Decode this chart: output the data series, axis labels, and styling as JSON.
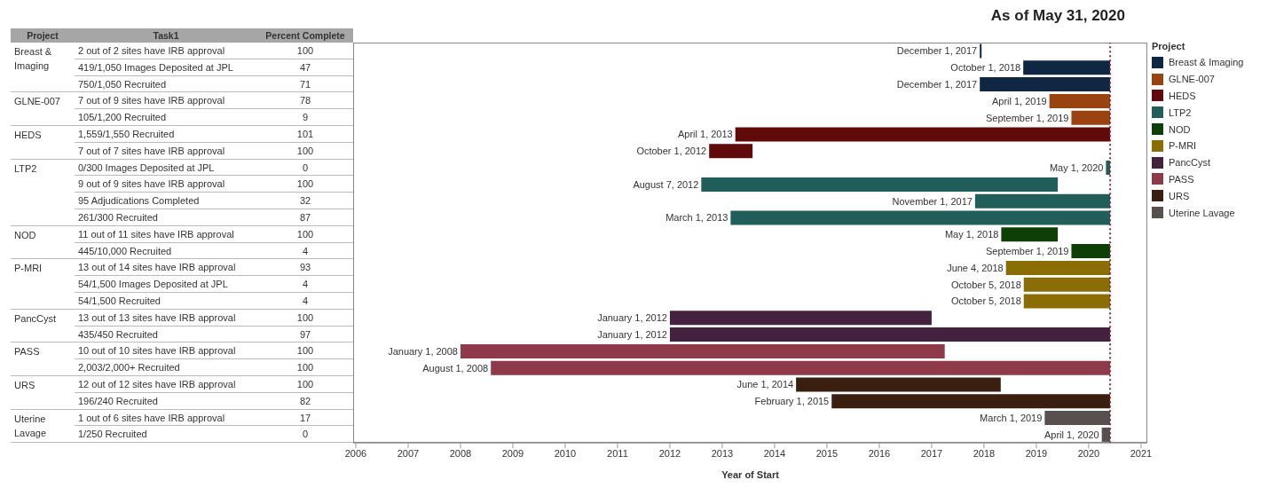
{
  "chart_data": {
    "type": "bar",
    "orientation": "horizontal",
    "title": "As of May 31, 2020",
    "xlabel": "Year of Start",
    "legend_title": "Project",
    "legend": "right",
    "categories": [
      "2 out of 2 sites have IRB approval",
      "419/1,050 Images Deposited at JPL",
      "750/1,050 Recruited",
      "7 out of 9 sites have IRB approval",
      "105/1,200 Recruited",
      "1,559/1,550 Recruited",
      "7 out of 7 sites have IRB approval",
      "0/300 Images Deposited at JPL",
      "9 out of 9 sites have IRB approval",
      "95 Adjudications Completed",
      "261/300 Recruited",
      "11 out of 11 sites have IRB approval",
      "445/10,000 Recruited",
      "13 out of 14 sites have IRB approval",
      "54/1,500 Images Deposited at JPL",
      "54/1,500 Recruited",
      "13 out of 13 sites have IRB approval",
      "435/450 Recruited",
      "10 out of 10 sites have IRB approval",
      "2,003/2,000+ Recruited",
      "12 out of 12 sites have IRB approval",
      "196/240 Recruited",
      "1 out of 6 sites have IRB approval",
      "1/250 Recruited"
    ],
    "value_labels": [
      "December 1, 2017",
      "October 1, 2018",
      "December 1, 2017",
      "April 1, 2019",
      "September 1, 2019",
      "April 1, 2013",
      "October 1, 2012",
      "May 1, 2020",
      "August 7, 2012",
      "November 1, 2017",
      "March 1, 2013",
      "May 1, 2018",
      "September 1, 2019",
      "June 4, 2018",
      "October 5, 2018",
      "October 5, 2018",
      "January 1, 2012",
      "January 1, 2012",
      "January 1, 2008",
      "August 1, 2008",
      "June 1, 2014",
      "February 1, 2015",
      "March 1, 2019",
      "April 1, 2020"
    ],
    "series": [
      {
        "name": "Breast & Imaging",
        "color": "#0f2742",
        "base": [
          2017.92,
          2018.75,
          2017.92,
          null,
          null,
          null,
          null,
          null,
          null,
          null,
          null,
          null,
          null,
          null,
          null,
          null,
          null,
          null,
          null,
          null,
          null,
          null,
          null,
          null
        ],
        "values": [
          0.02,
          1.66,
          2.49,
          null,
          null,
          null,
          null,
          null,
          null,
          null,
          null,
          null,
          null,
          null,
          null,
          null,
          null,
          null,
          null,
          null,
          null,
          null,
          null,
          null
        ]
      },
      {
        "name": "GLNE-007",
        "color": "#9a4310",
        "base": [
          null,
          null,
          null,
          2019.25,
          2019.67,
          null,
          null,
          null,
          null,
          null,
          null,
          null,
          null,
          null,
          null,
          null,
          null,
          null,
          null,
          null,
          null,
          null,
          null,
          null
        ],
        "values": [
          null,
          null,
          null,
          1.16,
          0.74,
          null,
          null,
          null,
          null,
          null,
          null,
          null,
          null,
          null,
          null,
          null,
          null,
          null,
          null,
          null,
          null,
          null,
          null,
          null
        ]
      },
      {
        "name": "HEDS",
        "color": "#600a0c",
        "base": [
          null,
          null,
          null,
          null,
          null,
          2013.25,
          2012.75,
          null,
          null,
          null,
          null,
          null,
          null,
          null,
          null,
          null,
          null,
          null,
          null,
          null,
          null,
          null,
          null,
          null
        ],
        "values": [
          null,
          null,
          null,
          null,
          null,
          7.16,
          0.83,
          null,
          null,
          null,
          null,
          null,
          null,
          null,
          null,
          null,
          null,
          null,
          null,
          null,
          null,
          null,
          null,
          null
        ]
      },
      {
        "name": "LTP2",
        "color": "#215e5a",
        "base": [
          null,
          null,
          null,
          null,
          null,
          null,
          null,
          2020.33,
          2012.6,
          2017.83,
          2013.16,
          null,
          null,
          null,
          null,
          null,
          null,
          null,
          null,
          null,
          null,
          null,
          null,
          null
        ],
        "values": [
          null,
          null,
          null,
          null,
          null,
          null,
          null,
          0.08,
          6.81,
          2.58,
          7.25,
          null,
          null,
          null,
          null,
          null,
          null,
          null,
          null,
          null,
          null,
          null,
          null,
          null
        ]
      },
      {
        "name": "NOD",
        "color": "#0e3f06",
        "base": [
          null,
          null,
          null,
          null,
          null,
          null,
          null,
          null,
          null,
          null,
          null,
          2018.33,
          2019.67,
          null,
          null,
          null,
          null,
          null,
          null,
          null,
          null,
          null,
          null,
          null
        ],
        "values": [
          null,
          null,
          null,
          null,
          null,
          null,
          null,
          null,
          null,
          null,
          null,
          1.08,
          0.74,
          null,
          null,
          null,
          null,
          null,
          null,
          null,
          null,
          null,
          null,
          null
        ]
      },
      {
        "name": "P-MRI",
        "color": "#8a6e05",
        "base": [
          null,
          null,
          null,
          null,
          null,
          null,
          null,
          null,
          null,
          null,
          null,
          null,
          null,
          2018.42,
          2018.76,
          2018.76,
          null,
          null,
          null,
          null,
          null,
          null,
          null,
          null
        ],
        "values": [
          null,
          null,
          null,
          null,
          null,
          null,
          null,
          null,
          null,
          null,
          null,
          null,
          null,
          1.99,
          1.65,
          1.65,
          null,
          null,
          null,
          null,
          null,
          null,
          null,
          null
        ]
      },
      {
        "name": "PancCyst",
        "color": "#44213e",
        "base": [
          null,
          null,
          null,
          null,
          null,
          null,
          null,
          null,
          null,
          null,
          null,
          null,
          null,
          null,
          null,
          null,
          2012.0,
          2012.0,
          null,
          null,
          null,
          null,
          null,
          null
        ],
        "values": [
          null,
          null,
          null,
          null,
          null,
          null,
          null,
          null,
          null,
          null,
          null,
          null,
          null,
          null,
          null,
          null,
          5.0,
          8.41,
          null,
          null,
          null,
          null,
          null,
          null
        ]
      },
      {
        "name": "PASS",
        "color": "#8e3a4a",
        "base": [
          null,
          null,
          null,
          null,
          null,
          null,
          null,
          null,
          null,
          null,
          null,
          null,
          null,
          null,
          null,
          null,
          null,
          null,
          2008.0,
          2008.58,
          null,
          null,
          null,
          null
        ],
        "values": [
          null,
          null,
          null,
          null,
          null,
          null,
          null,
          null,
          null,
          null,
          null,
          null,
          null,
          null,
          null,
          null,
          null,
          null,
          9.25,
          11.83,
          null,
          null,
          null,
          null
        ]
      },
      {
        "name": "URS",
        "color": "#3a1f10",
        "base": [
          null,
          null,
          null,
          null,
          null,
          null,
          null,
          null,
          null,
          null,
          null,
          null,
          null,
          null,
          null,
          null,
          null,
          null,
          null,
          null,
          2014.41,
          2015.09,
          null,
          null
        ],
        "values": [
          null,
          null,
          null,
          null,
          null,
          null,
          null,
          null,
          null,
          null,
          null,
          null,
          null,
          null,
          null,
          null,
          null,
          null,
          null,
          null,
          3.91,
          5.32,
          null,
          null
        ]
      },
      {
        "name": "Uterine Lavage",
        "color": "#57504e",
        "base": [
          null,
          null,
          null,
          null,
          null,
          null,
          null,
          null,
          null,
          null,
          null,
          null,
          null,
          null,
          null,
          null,
          null,
          null,
          null,
          null,
          null,
          null,
          2019.16,
          2020.25
        ],
        "values": [
          null,
          null,
          null,
          null,
          null,
          null,
          null,
          null,
          null,
          null,
          null,
          null,
          null,
          null,
          null,
          null,
          null,
          null,
          null,
          null,
          null,
          null,
          1.25,
          0.16
        ]
      }
    ],
    "xlim": [
      2005.95,
      2021.12
    ],
    "xticks": [
      2006,
      2007,
      2008,
      2009,
      2010,
      2011,
      2012,
      2013,
      2014,
      2015,
      2016,
      2017,
      2018,
      2019,
      2020,
      2021
    ],
    "ref_lines": [
      {
        "axis": "x",
        "value": 2020.41,
        "color": "#7a2e4a",
        "line_style": "dotted"
      }
    ],
    "annotations": [
      "Project",
      "Task1",
      "Percent Complete",
      "100",
      "47",
      "71",
      "78",
      "9",
      "101",
      "100",
      "0",
      "100",
      "32",
      "87",
      "100",
      "4",
      "93",
      "4",
      "4",
      "100",
      "97",
      "100",
      "100",
      "100",
      "82",
      "17",
      "0"
    ]
  }
}
